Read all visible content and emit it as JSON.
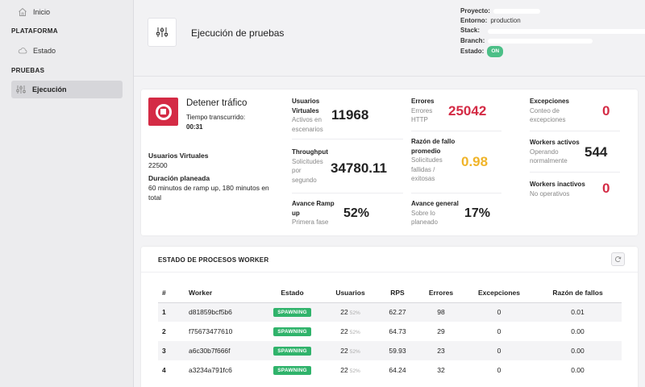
{
  "sidebar": {
    "home_label": "Inicio",
    "section_platform": "PLATAFORMA",
    "status_label": "Estado",
    "section_tests": "PRUEBAS",
    "execution_label": "Ejecución"
  },
  "header": {
    "title": "Ejecución de pruebas",
    "project_key": "Proyecto:",
    "environment_key": "Entorno:",
    "environment_value": "production",
    "stack_key": "Stack:",
    "branch_key": "Branch:",
    "state_key": "Estado:",
    "state_value": "ON"
  },
  "control": {
    "stop_label": "Detener tráfico",
    "elapsed_label": "Tiempo transcurrido:",
    "elapsed_value": "00:31",
    "vusers_label": "Usuarios Virtuales",
    "vusers_value": "22500",
    "duration_label": "Duración planeada",
    "duration_value": "60 minutos de ramp up, 180 minutos en total"
  },
  "metrics": {
    "vusers": {
      "title": "Usuarios Virtuales",
      "sub": "Activos en escenarios",
      "value": "11968"
    },
    "throughput": {
      "title": "Throughput",
      "sub": "Solicitudes por segundo",
      "value": "34780.11"
    },
    "ramp": {
      "title": "Avance Ramp up",
      "sub": "Primera fase",
      "value": "52%"
    },
    "errors": {
      "title": "Errores",
      "sub": "Errores HTTP",
      "value": "25042"
    },
    "fail_ratio": {
      "title": "Razón de fallo promedio",
      "sub": "Solicitudes fallidas / exitosas",
      "value": "0.98"
    },
    "overall": {
      "title": "Avance general",
      "sub": "Sobre lo planeado",
      "value": "17%"
    },
    "exceptions": {
      "title": "Excepciones",
      "sub": "Conteo de excepciones",
      "value": "0"
    },
    "active_workers": {
      "title": "Workers activos",
      "sub": "Operando normalmente",
      "value": "544"
    },
    "inactive_workers": {
      "title": "Workers inactivos",
      "sub": "No operativos",
      "value": "0"
    }
  },
  "colors": {
    "red": "#d42b45",
    "amber": "#f0b429",
    "dark": "#222222",
    "green": "#30b36b"
  },
  "workers": {
    "title": "ESTADO DE PROCESOS WORKER",
    "columns": [
      "#",
      "Worker",
      "Estado",
      "Usuarios",
      "RPS",
      "Errores",
      "Excepciones",
      "Razón de fallos"
    ],
    "rows": [
      {
        "num": "1",
        "worker": "d81859bcf5b6",
        "state": "SPAWNING",
        "users": "22",
        "pct": "52%",
        "rps": "62.27",
        "errors": "98",
        "exceptions": "0",
        "ratio": "0.01"
      },
      {
        "num": "2",
        "worker": "f75673477610",
        "state": "SPAWNING",
        "users": "22",
        "pct": "52%",
        "rps": "64.73",
        "errors": "29",
        "exceptions": "0",
        "ratio": "0.00"
      },
      {
        "num": "3",
        "worker": "a6c30b7f666f",
        "state": "SPAWNING",
        "users": "22",
        "pct": "52%",
        "rps": "59.93",
        "errors": "23",
        "exceptions": "0",
        "ratio": "0.00"
      },
      {
        "num": "4",
        "worker": "a3234a791fc6",
        "state": "SPAWNING",
        "users": "22",
        "pct": "52%",
        "rps": "64.24",
        "errors": "32",
        "exceptions": "0",
        "ratio": "0.00"
      }
    ]
  }
}
